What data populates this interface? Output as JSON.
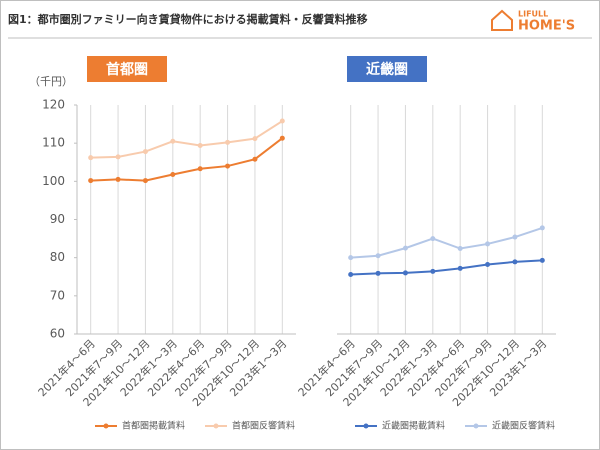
{
  "title": "図1：都市圏別ファミリー向き賃貸物件における掲載賃料・反響賃料推移",
  "logo": {
    "top": "LIFULL",
    "bottom": "HOME'S"
  },
  "chart_data": [
    {
      "type": "line",
      "title": "首都圏",
      "title_color": "#ed7d31",
      "y_label": "（千円）",
      "categories": [
        "2021年4～6月",
        "2021年7～9月",
        "2021年10～12月",
        "2022年1～3月",
        "2022年4～6月",
        "2022年7～9月",
        "2022年10～12月",
        "2023年1～3月"
      ],
      "series": [
        {
          "name": "首都圏掲載賃料",
          "color": "#ed7d31",
          "values": [
            100.2,
            100.5,
            100.2,
            101.8,
            103.3,
            104.0,
            105.8,
            111.3
          ]
        },
        {
          "name": "首都圏反響賃料",
          "color": "#f8cbad",
          "values": [
            106.2,
            106.4,
            107.8,
            110.5,
            109.4,
            110.2,
            111.2,
            115.8
          ]
        }
      ],
      "ylim": [
        60,
        120
      ],
      "yticks": [
        60,
        70,
        80,
        90,
        100,
        110,
        120
      ]
    },
    {
      "type": "line",
      "title": "近畿圏",
      "title_color": "#4472c4",
      "categories": [
        "2021年4～6月",
        "2021年7～9月",
        "2021年10～12月",
        "2022年1～3月",
        "2022年4～6月",
        "2022年7～9月",
        "2022年10～12月",
        "2023年1～3月"
      ],
      "series": [
        {
          "name": "近畿圏掲載賃料",
          "color": "#4472c4",
          "values": [
            75.6,
            75.9,
            76.0,
            76.4,
            77.2,
            78.2,
            78.9,
            79.3
          ]
        },
        {
          "name": "近畿圏反響賃料",
          "color": "#b4c7e7",
          "values": [
            80.0,
            80.5,
            82.5,
            85.0,
            82.4,
            83.6,
            85.4,
            87.8
          ]
        }
      ],
      "ylim": [
        60,
        120
      ]
    }
  ]
}
